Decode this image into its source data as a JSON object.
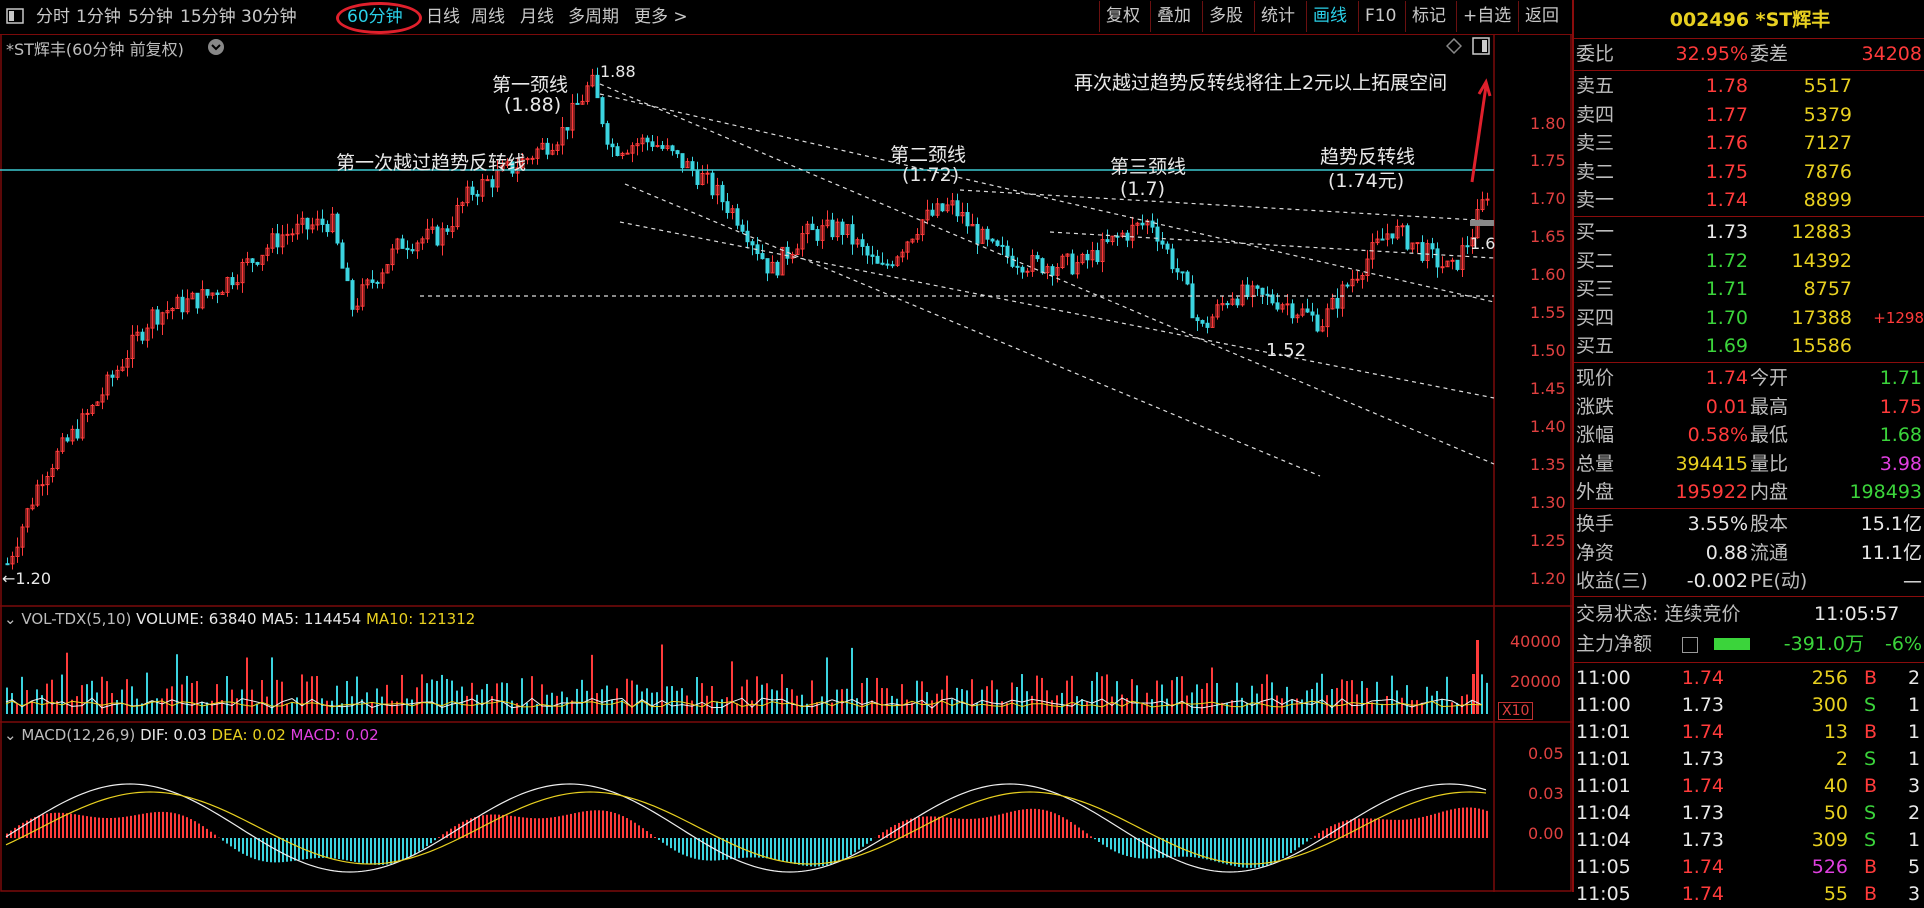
{
  "toolbar": {
    "left_icon": "panel-toggle-icon",
    "periods": [
      "分时",
      "1分钟",
      "5分钟",
      "15分钟",
      "30分钟",
      "60分钟",
      "日线",
      "周线",
      "月线",
      "多周期",
      "更多 >"
    ],
    "selected_period": "60分钟",
    "right_buttons": [
      "复权",
      "叠加",
      "多股",
      "统计",
      "画线",
      "F10",
      "标记",
      "+自选",
      "返回"
    ],
    "selected_right": "画线"
  },
  "chart": {
    "title": "*ST辉丰(60分钟 前复权)",
    "main_axis": [
      "1.80",
      "1.75",
      "1.70",
      "1.65",
      "1.60",
      "1.55",
      "1.50",
      "1.45",
      "1.40",
      "1.35",
      "1.30",
      "1.25",
      "1.20"
    ],
    "low_label": "←1.20",
    "high_label": "1.88",
    "current_tag": "1.6",
    "low2_label": "1.52",
    "annotations": {
      "neck1": "第一颈线",
      "neck1_val": "(1.88)",
      "first_cross": "第一次越过趋势反转线",
      "neck2": "第二颈线",
      "neck2_val": "(1.72)",
      "neck3": "第三颈线",
      "neck3_val": "(1.7)",
      "trend": "趋势反转线",
      "trend_val": "(1.74元)",
      "note": "再次越过趋势反转线将往上2元以上拓展空间"
    },
    "vol_title_prefix": "VOL-TDX(5,10)",
    "vol_volume": "VOLUME: 63840",
    "vol_ma5": "MA5: 114454",
    "vol_ma10": "MA10: 121312",
    "vol_axis": [
      "40000",
      "20000"
    ],
    "vol_x10": "X10",
    "macd_title": "MACD(12,26,9)",
    "macd_dif": "DIF: 0.03",
    "macd_dea": "DEA: 0.02",
    "macd_macd": "MACD: 0.02",
    "macd_axis": [
      "0.05",
      "0.03",
      "0.00"
    ]
  },
  "side": {
    "code": "002496",
    "name": "*ST辉丰",
    "weibi_label": "委比",
    "weibi_val": "32.95%",
    "weicha_label": "委差",
    "weicha_val": "34208",
    "asks": [
      {
        "label": "卖五",
        "price": "1.78",
        "vol": "5517"
      },
      {
        "label": "卖四",
        "price": "1.77",
        "vol": "5379"
      },
      {
        "label": "卖三",
        "price": "1.76",
        "vol": "7127"
      },
      {
        "label": "卖二",
        "price": "1.75",
        "vol": "7876"
      },
      {
        "label": "卖一",
        "price": "1.74",
        "vol": "8899"
      }
    ],
    "bids": [
      {
        "label": "买一",
        "price": "1.73",
        "vol": "12883",
        "extra": ""
      },
      {
        "label": "买二",
        "price": "1.72",
        "vol": "14392",
        "extra": ""
      },
      {
        "label": "买三",
        "price": "1.71",
        "vol": "8757",
        "extra": ""
      },
      {
        "label": "买四",
        "price": "1.70",
        "vol": "17388",
        "extra": "+1298"
      },
      {
        "label": "买五",
        "price": "1.69",
        "vol": "15586",
        "extra": ""
      }
    ],
    "quote": [
      {
        "l1": "现价",
        "v1": "1.74",
        "l2": "今开",
        "v2": "1.71"
      },
      {
        "l1": "涨跌",
        "v1": "0.01",
        "l2": "最高",
        "v2": "1.75"
      },
      {
        "l1": "涨幅",
        "v1": "0.58%",
        "l2": "最低",
        "v2": "1.68"
      },
      {
        "l1": "总量",
        "v1": "394415",
        "l2": "量比",
        "v2": "3.98"
      },
      {
        "l1": "外盘",
        "v1": "195922",
        "l2": "内盘",
        "v2": "198493"
      }
    ],
    "fund": [
      {
        "l1": "换手",
        "v1": "3.55%",
        "l2": "股本",
        "v2": "15.1亿"
      },
      {
        "l1": "净资",
        "v1": "0.88",
        "l2": "流通",
        "v2": "11.1亿"
      },
      {
        "l1": "收益(三)",
        "v1": "-0.002",
        "l2": "PE(动)",
        "v2": "—"
      }
    ],
    "trade_state": "交易状态: 连续竞价",
    "trade_time": "11:05:57",
    "main_flow_label": "主力净额",
    "main_flow_val": "-391.0万",
    "main_flow_pct": "-6%",
    "ticks": [
      {
        "t": "11:00",
        "p": "1.74",
        "v": "256",
        "s": "B",
        "n": "2"
      },
      {
        "t": "11:00",
        "p": "1.73",
        "v": "300",
        "s": "S",
        "n": "1"
      },
      {
        "t": "11:01",
        "p": "1.74",
        "v": "13",
        "s": "B",
        "n": "1"
      },
      {
        "t": "11:01",
        "p": "1.73",
        "v": "2",
        "s": "S",
        "n": "1"
      },
      {
        "t": "11:01",
        "p": "1.74",
        "v": "40",
        "s": "B",
        "n": "3"
      },
      {
        "t": "11:04",
        "p": "1.73",
        "v": "50",
        "s": "S",
        "n": "2"
      },
      {
        "t": "11:04",
        "p": "1.73",
        "v": "309",
        "s": "S",
        "n": "1"
      },
      {
        "t": "11:05",
        "p": "1.74",
        "v": "526",
        "s": "B",
        "n": "5"
      },
      {
        "t": "11:05",
        "p": "1.74",
        "v": "55",
        "s": "B",
        "n": "3"
      }
    ]
  },
  "colors": {
    "up": "#ff3b3b",
    "down": "#3bd4e0",
    "grid": "#7a0a0a",
    "accent": "#2ad0e8"
  }
}
